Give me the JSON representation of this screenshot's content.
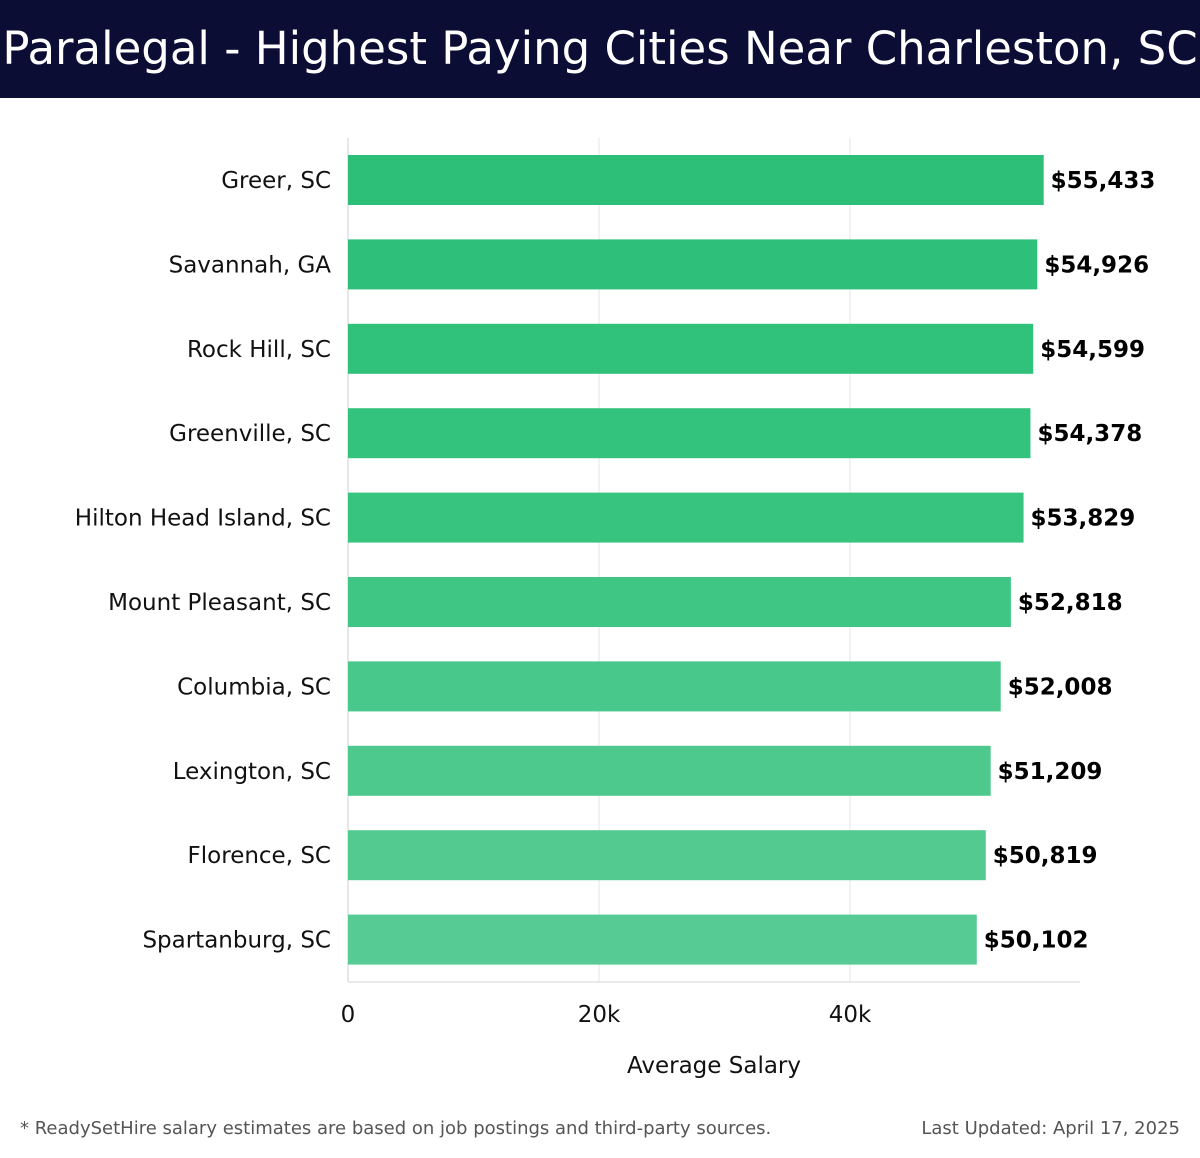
{
  "header": {
    "title": "Paralegal - Highest Paying Cities Near Charleston, SC"
  },
  "chart_data": {
    "type": "bar",
    "orientation": "horizontal",
    "title": "Paralegal - Highest Paying Cities Near Charleston, SC",
    "xlabel": "Average Salary",
    "ylabel": "",
    "categories": [
      "Greer, SC",
      "Savannah, GA",
      "Rock Hill, SC",
      "Greenville, SC",
      "Hilton Head Island, SC",
      "Mount Pleasant, SC",
      "Columbia, SC",
      "Lexington, SC",
      "Florence, SC",
      "Spartanburg, SC"
    ],
    "values": [
      55433,
      54926,
      54599,
      54378,
      53829,
      52818,
      52008,
      51209,
      50819,
      50102
    ],
    "value_labels": [
      "$55,433",
      "$54,926",
      "$54,599",
      "$54,378",
      "$53,829",
      "$52,818",
      "$52,008",
      "$51,209",
      "$50,819",
      "$50,102"
    ],
    "x_ticks": [
      0,
      20000,
      40000
    ],
    "x_tick_labels": [
      "0",
      "20k",
      "40k"
    ],
    "xlim": [
      0,
      58200
    ],
    "grid": "vertical",
    "bar_colors": [
      "#2dbe78",
      "#2ec07a",
      "#30c17b",
      "#33c37d",
      "#37c47f",
      "#3fc684",
      "#48c88a",
      "#4ec98e",
      "#52ca90",
      "#56cb93"
    ]
  },
  "footer": {
    "note": "* ReadySetHire salary estimates are based on job postings and third-party sources.",
    "updated": "Last Updated: April 17, 2025"
  }
}
